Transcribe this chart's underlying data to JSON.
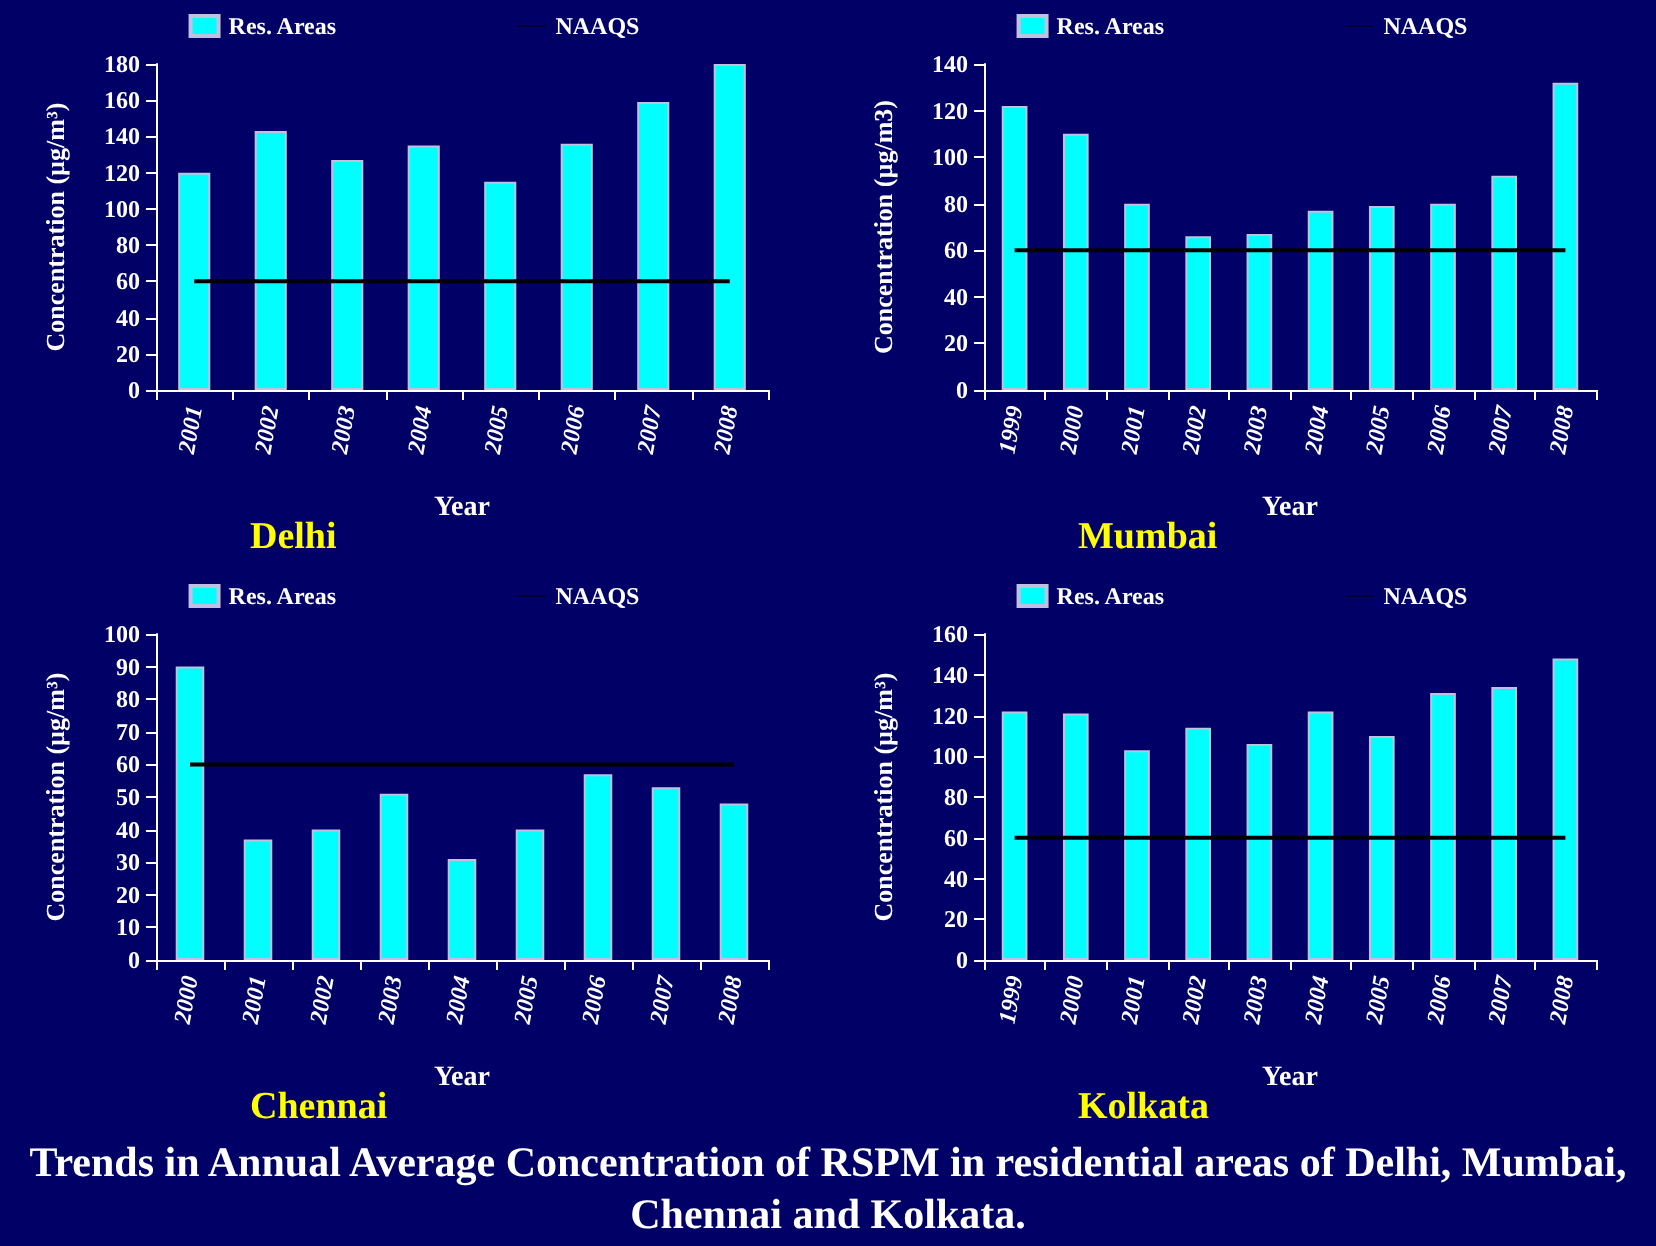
{
  "chart_data": [
    {
      "type": "bar",
      "title": "Delhi",
      "xlabel": "Year",
      "ylabel": "Concentration (µg/m³)",
      "categories": [
        "2001",
        "2002",
        "2003",
        "2004",
        "2005",
        "2006",
        "2007",
        "2008"
      ],
      "series": [
        {
          "name": "Res. Areas",
          "color": "#00ffff",
          "values": [
            120,
            143,
            127,
            135,
            115,
            136,
            159,
            180
          ]
        },
        {
          "name": "NAAQS",
          "type": "line",
          "color": "#000000",
          "values": [
            60,
            60,
            60,
            60,
            60,
            60,
            60,
            60
          ]
        }
      ],
      "ylim": [
        0,
        180
      ],
      "yticks": [
        0,
        20,
        40,
        60,
        80,
        100,
        120,
        140,
        160,
        180
      ],
      "grid": false,
      "legend": "top",
      "marker": "none"
    },
    {
      "type": "bar",
      "title": "Mumbai",
      "xlabel": "Year",
      "ylabel": "Concentration (µg/m3)",
      "categories": [
        "1999",
        "2000",
        "2001",
        "2002",
        "2003",
        "2004",
        "2005",
        "2006",
        "2007",
        "2008"
      ],
      "series": [
        {
          "name": "Res. Areas",
          "color": "#00ffff",
          "values": [
            122,
            110,
            80,
            66,
            67,
            77,
            79,
            80,
            92,
            132
          ]
        },
        {
          "name": "NAAQS",
          "type": "line",
          "color": "#000000",
          "values": [
            60,
            60,
            60,
            60,
            60,
            60,
            60,
            60,
            60,
            60
          ]
        }
      ],
      "ylim": [
        0,
        140
      ],
      "yticks": [
        0,
        20,
        40,
        60,
        80,
        100,
        120,
        140
      ],
      "grid": false,
      "legend": "top",
      "marker": "none"
    },
    {
      "type": "bar",
      "title": "Chennai",
      "xlabel": "Year",
      "ylabel": "Concentration (µg/m³)",
      "categories": [
        "2000",
        "2001",
        "2002",
        "2003",
        "2004",
        "2005",
        "2006",
        "2007",
        "2008"
      ],
      "series": [
        {
          "name": "Res. Areas",
          "color": "#00ffff",
          "values": [
            90,
            37,
            40,
            51,
            31,
            40,
            57,
            53,
            48
          ]
        },
        {
          "name": "NAAQS",
          "type": "line",
          "color": "#000000",
          "values": [
            60,
            60,
            60,
            60,
            60,
            60,
            60,
            60,
            60
          ]
        }
      ],
      "ylim": [
        0,
        100
      ],
      "yticks": [
        0,
        10,
        20,
        30,
        40,
        50,
        60,
        70,
        80,
        90,
        100
      ],
      "grid": false,
      "legend": "top",
      "marker": "none"
    },
    {
      "type": "bar",
      "title": "Kolkata",
      "xlabel": "Year",
      "ylabel": "Concentration (µg/m³)",
      "categories": [
        "1999",
        "2000",
        "2001",
        "2002",
        "2003",
        "2004",
        "2005",
        "2006",
        "2007",
        "2008"
      ],
      "series": [
        {
          "name": "Res. Areas",
          "color": "#00ffff",
          "values": [
            122,
            121,
            103,
            114,
            106,
            122,
            110,
            131,
            134,
            148
          ]
        },
        {
          "name": "NAAQS",
          "type": "line",
          "color": "#000000",
          "values": [
            60,
            60,
            60,
            60,
            60,
            60,
            60,
            60,
            60,
            60
          ]
        }
      ],
      "ylim": [
        0,
        160
      ],
      "yticks": [
        0,
        20,
        40,
        60,
        80,
        100,
        120,
        140,
        160
      ],
      "grid": false,
      "legend": "top",
      "marker": "none",
      "annotations": [
        "Trends in Annual Average Concentration of RSPM in residential areas of Delhi, Mumbai, Chennai and Kolkata."
      ]
    }
  ]
}
